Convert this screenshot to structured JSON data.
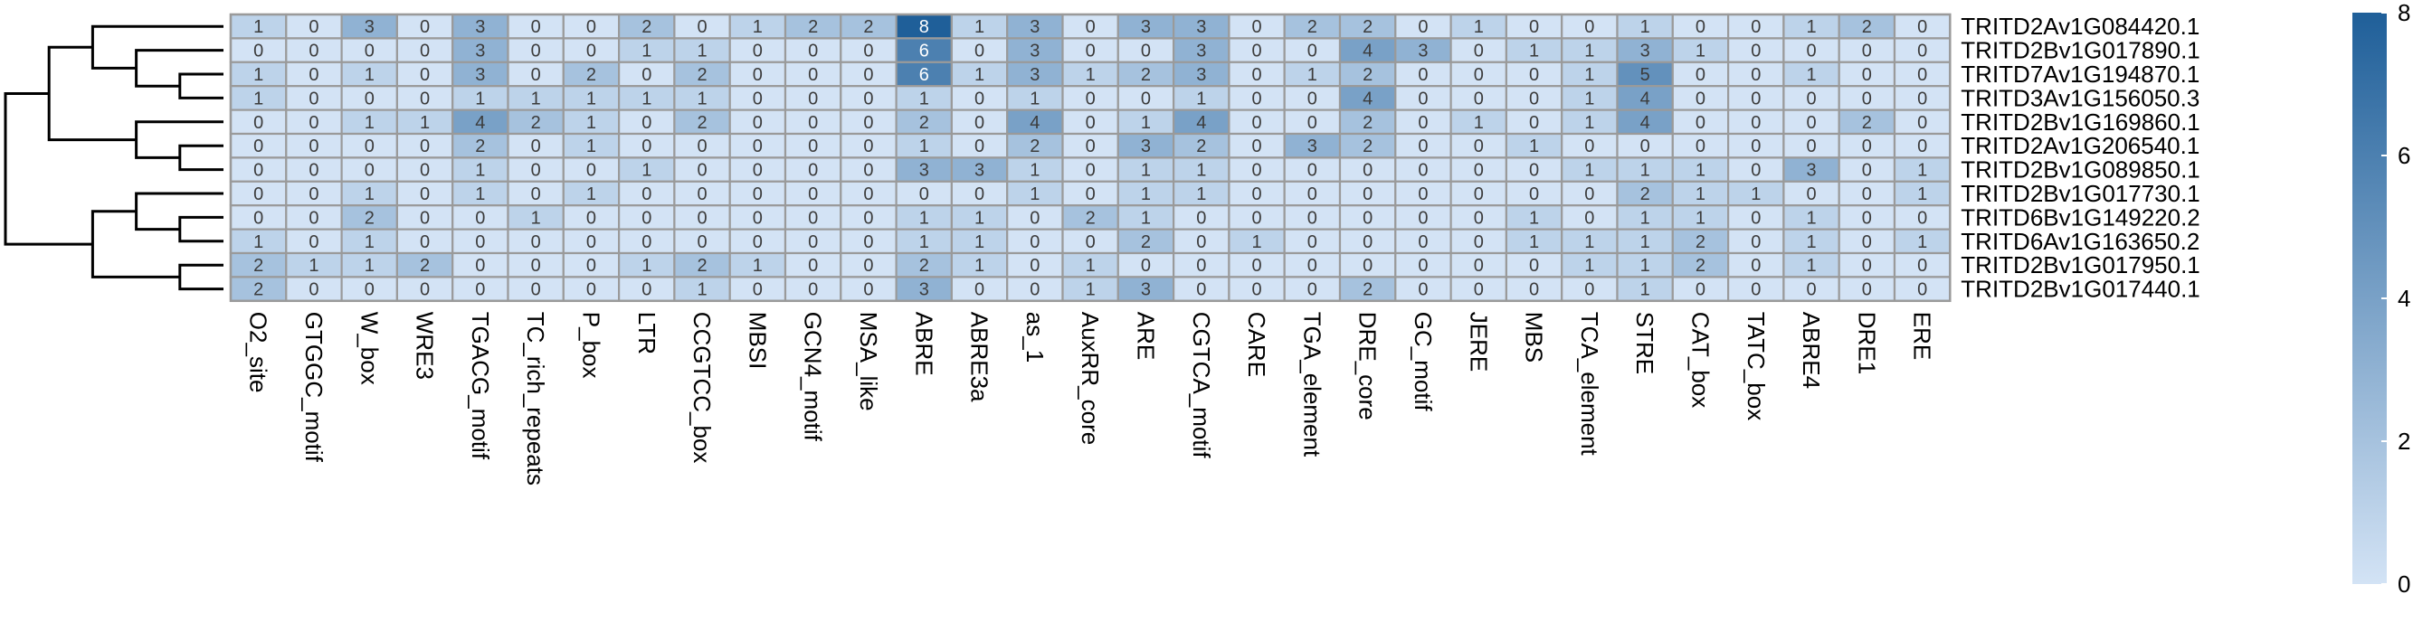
{
  "chart_data": {
    "type": "heatmap",
    "title": "",
    "xlabel": "",
    "ylabel": "",
    "rows": [
      "TRITD2Av1G084420.1",
      "TRITD2Bv1G017890.1",
      "TRITD7Av1G194870.1",
      "TRITD3Av1G156050.3",
      "TRITD2Bv1G169860.1",
      "TRITD2Av1G206540.1",
      "TRITD2Bv1G089850.1",
      "TRITD2Bv1G017730.1",
      "TRITD6Bv1G149220.2",
      "TRITD6Av1G163650.2",
      "TRITD2Bv1G017950.1",
      "TRITD2Bv1G017440.1"
    ],
    "columns": [
      "O2_site",
      "GTGGC_motif",
      "W_box",
      "WRE3",
      "TGACG_motif",
      "TC_rich_repeats",
      "P_box",
      "LTR",
      "CCGTCC_box",
      "MBSI",
      "GCN4_motif",
      "MSA_like",
      "ABRE",
      "ABRE3a",
      "as_1",
      "AuxRR_core",
      "ARE",
      "CGTCA_motif",
      "CARE",
      "TGA_element",
      "DRE_core",
      "GC_motif",
      "JERE",
      "MBS",
      "TCA_element",
      "STRE",
      "CAT_box",
      "TATC_box",
      "ABRE4",
      "DRE1",
      "ERE"
    ],
    "values": [
      [
        1,
        0,
        3,
        0,
        3,
        0,
        0,
        2,
        0,
        1,
        2,
        2,
        8,
        1,
        3,
        0,
        3,
        3,
        0,
        2,
        2,
        0,
        1,
        0,
        0,
        1,
        0,
        0,
        1,
        2,
        0
      ],
      [
        0,
        0,
        0,
        0,
        3,
        0,
        0,
        1,
        1,
        0,
        0,
        0,
        6,
        0,
        3,
        0,
        0,
        3,
        0,
        0,
        4,
        3,
        0,
        1,
        1,
        3,
        1,
        0,
        0,
        0,
        0
      ],
      [
        1,
        0,
        1,
        0,
        3,
        0,
        2,
        0,
        2,
        0,
        0,
        0,
        6,
        1,
        3,
        1,
        2,
        3,
        0,
        1,
        2,
        0,
        0,
        0,
        1,
        5,
        0,
        0,
        1,
        0,
        0
      ],
      [
        1,
        0,
        0,
        0,
        1,
        1,
        1,
        1,
        1,
        0,
        0,
        0,
        1,
        0,
        1,
        0,
        0,
        1,
        0,
        0,
        4,
        0,
        0,
        0,
        1,
        4,
        0,
        0,
        0,
        0,
        0
      ],
      [
        0,
        0,
        1,
        1,
        4,
        2,
        1,
        0,
        2,
        0,
        0,
        0,
        2,
        0,
        4,
        0,
        1,
        4,
        0,
        0,
        2,
        0,
        1,
        0,
        1,
        4,
        0,
        0,
        0,
        2,
        0
      ],
      [
        0,
        0,
        0,
        0,
        2,
        0,
        1,
        0,
        0,
        0,
        0,
        0,
        1,
        0,
        2,
        0,
        3,
        2,
        0,
        3,
        2,
        0,
        0,
        1,
        0,
        0,
        0,
        0,
        0,
        0,
        0
      ],
      [
        0,
        0,
        0,
        0,
        1,
        0,
        0,
        1,
        0,
        0,
        0,
        0,
        3,
        3,
        1,
        0,
        1,
        1,
        0,
        0,
        0,
        0,
        0,
        0,
        1,
        1,
        1,
        0,
        3,
        0,
        1
      ],
      [
        0,
        0,
        1,
        0,
        1,
        0,
        1,
        0,
        0,
        0,
        0,
        0,
        0,
        0,
        1,
        0,
        1,
        1,
        0,
        0,
        0,
        0,
        0,
        0,
        0,
        2,
        1,
        1,
        0,
        0,
        1
      ],
      [
        0,
        0,
        2,
        0,
        0,
        1,
        0,
        0,
        0,
        0,
        0,
        0,
        1,
        1,
        0,
        2,
        1,
        0,
        0,
        0,
        0,
        0,
        0,
        1,
        0,
        1,
        1,
        0,
        1,
        0,
        0
      ],
      [
        1,
        0,
        1,
        0,
        0,
        0,
        0,
        0,
        0,
        0,
        0,
        0,
        1,
        1,
        0,
        0,
        2,
        0,
        1,
        0,
        0,
        0,
        0,
        1,
        1,
        1,
        2,
        0,
        1,
        0,
        1
      ],
      [
        2,
        1,
        1,
        2,
        0,
        0,
        0,
        1,
        2,
        1,
        0,
        0,
        2,
        1,
        0,
        1,
        0,
        0,
        0,
        0,
        0,
        0,
        0,
        0,
        1,
        1,
        2,
        0,
        1,
        0,
        0
      ],
      [
        2,
        0,
        0,
        0,
        0,
        0,
        0,
        0,
        1,
        0,
        0,
        0,
        3,
        0,
        0,
        1,
        3,
        0,
        0,
        0,
        2,
        0,
        0,
        0,
        0,
        1,
        0,
        0,
        0,
        0,
        0
      ]
    ],
    "color_scale": {
      "min": 0,
      "max": 8,
      "ticks": [
        "0",
        "2",
        "4",
        "6",
        "8"
      ],
      "low_color": "#d3e3f5",
      "high_color": "#1f5f99"
    },
    "dendrogram": {
      "side": "left",
      "merges": [
        [
          2,
          3
        ],
        [
          1,
          "n0"
        ],
        [
          0,
          "n1"
        ],
        [
          5,
          6
        ],
        [
          4,
          "n3"
        ],
        [
          "n2",
          "n4"
        ],
        [
          8,
          9
        ],
        [
          7,
          "n6"
        ],
        [
          10,
          11
        ],
        [
          "n7",
          "n8"
        ],
        [
          "n5",
          "n9"
        ]
      ]
    },
    "legend": "right"
  }
}
